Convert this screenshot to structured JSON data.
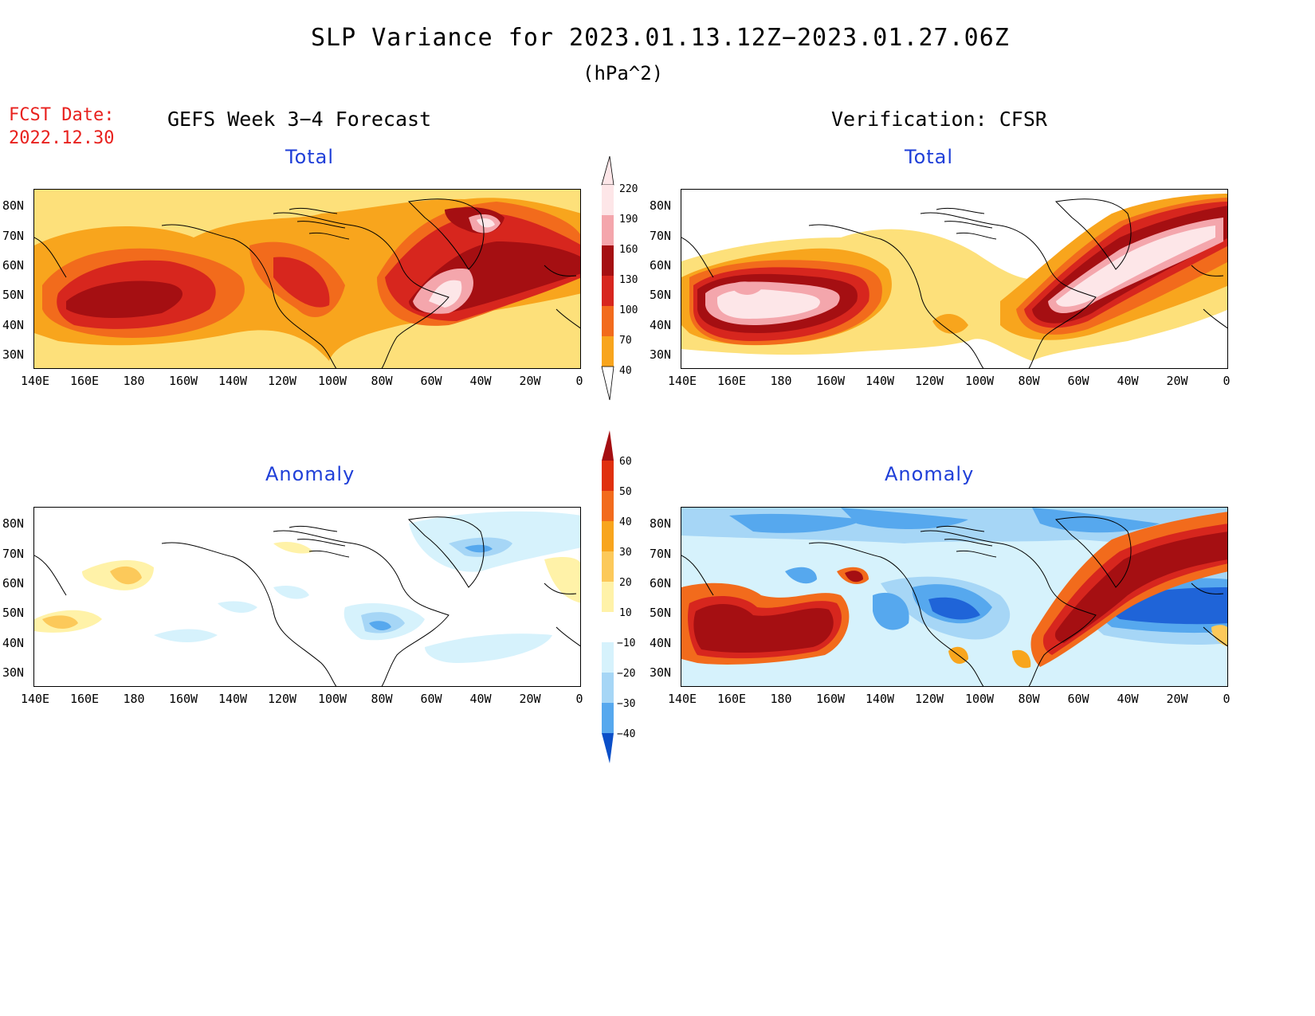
{
  "header": {
    "title": "SLP Variance for 2023.01.13.12Z−2023.01.27.06Z",
    "units": "(hPa^2)",
    "fcst_label": "FCST Date:",
    "fcst_date": "2022.12.30",
    "left_heading": "GEFS Week 3−4 Forecast",
    "right_heading": "Verification: CFSR"
  },
  "panels": {
    "forecast_total_title": "Total",
    "verification_total_title": "Total",
    "forecast_anomaly_title": "Anomaly",
    "verification_anomaly_title": "Anomaly"
  },
  "axes": {
    "lat_labels": [
      "80N",
      "70N",
      "60N",
      "50N",
      "40N",
      "30N"
    ],
    "lon_labels": [
      "140E",
      "160E",
      "180",
      "160W",
      "140W",
      "120W",
      "100W",
      "80W",
      "60W",
      "40W",
      "20W",
      "0"
    ]
  },
  "colorbar_total": {
    "labels": [
      "220",
      "190",
      "160",
      "130",
      "100",
      "70",
      "40"
    ],
    "colors": [
      "#fde6e8",
      "#f4a6ac",
      "#a50f12",
      "#d7261e",
      "#f26b1c",
      "#f8a51d",
      "#fde07a"
    ]
  },
  "colorbar_anomaly": {
    "labels": [
      "60",
      "50",
      "40",
      "30",
      "20",
      "10",
      "−10",
      "−20",
      "−30",
      "−40"
    ],
    "colors": [
      "#a50f12",
      "#e0300e",
      "#f26b1c",
      "#f8a51d",
      "#fcc95a",
      "#fff2a8",
      "#ffffff",
      "#d6f2fc",
      "#a6d6f6",
      "#56a8ee",
      "#1f64d8",
      "#0b4fc8"
    ]
  }
}
